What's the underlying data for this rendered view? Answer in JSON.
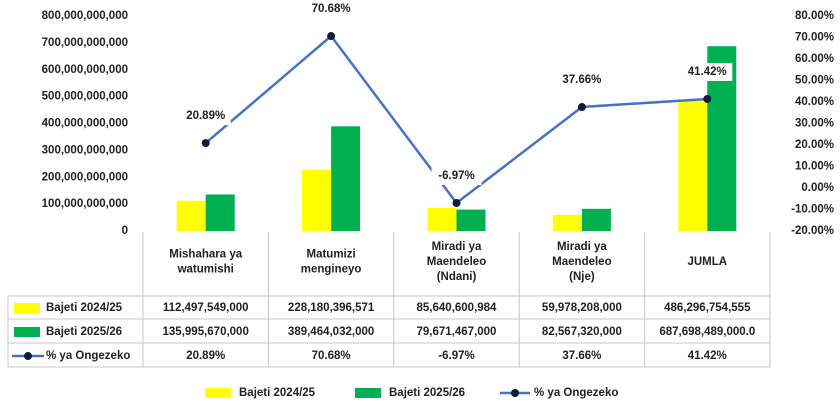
{
  "chart_data": {
    "type": "bar-line",
    "categories": [
      [
        "Mishahara ya",
        "watumishi"
      ],
      [
        "Matumizi",
        "mengineyo"
      ],
      [
        "Miradi ya",
        "Maendeleo",
        "(Ndani)"
      ],
      [
        "Miradi ya",
        "Maendeleo",
        "(Nje)"
      ],
      [
        "JUMLA"
      ]
    ],
    "series": [
      {
        "name": "Bajeti 2024/25",
        "color": "#ffff00",
        "kind": "bar",
        "values": [
          112497549000,
          228180396571,
          85640600984,
          59978208000,
          486296754555
        ],
        "value_labels": [
          "112,497,549,000",
          "228,180,396,571",
          "85,640,600,984",
          "59,978,208,000",
          "486,296,754,555"
        ]
      },
      {
        "name": "Bajeti 2025/26",
        "color": "#00b050",
        "kind": "bar",
        "values": [
          135995670000,
          389464032000,
          79671467000,
          82567320000,
          687698489000
        ],
        "value_labels": [
          "135,995,670,000",
          "389,464,032,000",
          "79,671,467,000",
          "82,567,320,000",
          "687,698,489,000.0"
        ]
      },
      {
        "name": "% ya Ongezeko",
        "color": "#4472c4",
        "kind": "line",
        "axis": "y2",
        "values": [
          20.89,
          70.68,
          -6.97,
          37.66,
          41.42
        ],
        "value_labels": [
          "20.89%",
          "70.68%",
          "-6.97%",
          "37.66%",
          "41.42%"
        ]
      }
    ],
    "ylim": [
      0,
      800000000000
    ],
    "yticks": [
      0,
      {
        "value": 100000000000,
        "label": "100,000,000,000"
      },
      {
        "value": 200000000000,
        "label": "200,000,000,000"
      },
      {
        "value": 300000000000,
        "label": "300,000,000,000"
      },
      {
        "value": 400000000000,
        "label": "400,000,000,000"
      },
      {
        "value": 500000000000,
        "label": "500,000,000,000"
      },
      {
        "value": 600000000000,
        "label": "600,000,000,000"
      },
      {
        "value": 700000000000,
        "label": "700,000,000,000"
      },
      {
        "value": 800000000000,
        "label": "800,000,000,000"
      }
    ],
    "y2lim": [
      -20,
      80
    ],
    "y2ticks": [
      {
        "value": -20,
        "label": "-20.00%"
      },
      {
        "value": -10,
        "label": "-10.00%"
      },
      {
        "value": 0,
        "label": "0.00%"
      },
      {
        "value": 10,
        "label": "10.00%"
      },
      {
        "value": 20,
        "label": "20.00%"
      },
      {
        "value": 30,
        "label": "30.00%"
      },
      {
        "value": 40,
        "label": "40.00%"
      },
      {
        "value": 50,
        "label": "50.00%"
      },
      {
        "value": 60,
        "label": "60.00%"
      },
      {
        "value": 70,
        "label": "70.00%"
      },
      {
        "value": 80,
        "label": "80.00%"
      }
    ],
    "marker_color": "#0d1b3e"
  }
}
